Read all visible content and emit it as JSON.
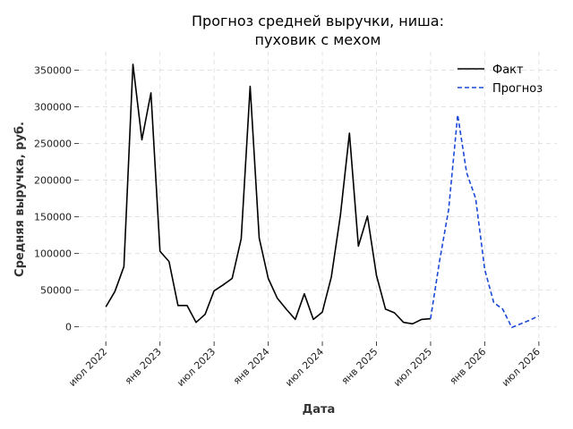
{
  "chart_data": {
    "type": "line",
    "title": [
      "Прогноз средней выручки, ниша:",
      "пуховик с мехом"
    ],
    "xlabel": "Дата",
    "ylabel": "Средняя выручка, руб.",
    "ylim": [
      -20000,
      375000
    ],
    "yticks": [
      0,
      50000,
      100000,
      150000,
      200000,
      250000,
      300000,
      350000
    ],
    "xlim": [
      "2022-04",
      "2026-09"
    ],
    "xticks": [
      {
        "date": "2022-07",
        "label": "июл 2022"
      },
      {
        "date": "2023-01",
        "label": "янв 2023"
      },
      {
        "date": "2023-07",
        "label": "июл 2023"
      },
      {
        "date": "2024-01",
        "label": "янв 2024"
      },
      {
        "date": "2024-07",
        "label": "июл 2024"
      },
      {
        "date": "2025-01",
        "label": "янв 2025"
      },
      {
        "date": "2025-07",
        "label": "июл 2025"
      },
      {
        "date": "2026-01",
        "label": "янв 2026"
      },
      {
        "date": "2026-07",
        "label": "июл 2026"
      }
    ],
    "grid": true,
    "legend_position": "top-right",
    "series": [
      {
        "name": "Факт",
        "color": "#000000",
        "style": "solid",
        "points": [
          [
            "2022-07",
            27000
          ],
          [
            "2022-08",
            48000
          ],
          [
            "2022-09",
            82000
          ],
          [
            "2022-10",
            358000
          ],
          [
            "2022-11",
            255000
          ],
          [
            "2022-12",
            319000
          ],
          [
            "2023-01",
            103000
          ],
          [
            "2023-02",
            89000
          ],
          [
            "2023-03",
            29000
          ],
          [
            "2023-04",
            29000
          ],
          [
            "2023-05",
            6000
          ],
          [
            "2023-06",
            17000
          ],
          [
            "2023-07",
            49000
          ],
          [
            "2023-08",
            57000
          ],
          [
            "2023-09",
            66000
          ],
          [
            "2023-10",
            120000
          ],
          [
            "2023-11",
            328000
          ],
          [
            "2023-12",
            121000
          ],
          [
            "2024-01",
            66000
          ],
          [
            "2024-02",
            39000
          ],
          [
            "2024-03",
            24000
          ],
          [
            "2024-04",
            10000
          ],
          [
            "2024-05",
            45000
          ],
          [
            "2024-06",
            10000
          ],
          [
            "2024-07",
            20000
          ],
          [
            "2024-08",
            68000
          ],
          [
            "2024-09",
            152000
          ],
          [
            "2024-10",
            264000
          ],
          [
            "2024-11",
            110000
          ],
          [
            "2024-12",
            151000
          ],
          [
            "2025-01",
            70000
          ],
          [
            "2025-02",
            24000
          ],
          [
            "2025-03",
            19000
          ],
          [
            "2025-04",
            6000
          ],
          [
            "2025-05",
            4000
          ],
          [
            "2025-06",
            10000
          ],
          [
            "2025-07",
            11000
          ]
        ]
      },
      {
        "name": "Прогноз",
        "color": "#1a49d9",
        "style": "dashed",
        "points": [
          [
            "2025-07",
            11000
          ],
          [
            "2025-08",
            90000
          ],
          [
            "2025-09",
            160000
          ],
          [
            "2025-10",
            289000
          ],
          [
            "2025-11",
            210000
          ],
          [
            "2025-12",
            175000
          ],
          [
            "2026-01",
            78000
          ],
          [
            "2026-02",
            33000
          ],
          [
            "2026-03",
            24000
          ],
          [
            "2026-04",
            -1000
          ],
          [
            "2026-05",
            4000
          ],
          [
            "2026-06",
            9000
          ],
          [
            "2026-07",
            15000
          ]
        ]
      }
    ]
  }
}
